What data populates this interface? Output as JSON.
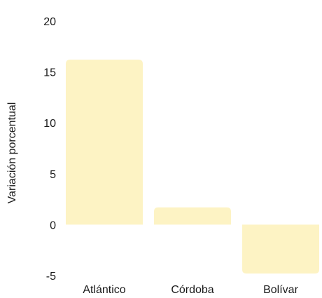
{
  "chart_data": {
    "type": "bar",
    "categories": [
      "Atlántico",
      "Córdoba",
      "Bolívar"
    ],
    "values": [
      16.2,
      1.7,
      -4.8
    ],
    "title": "",
    "xlabel": "",
    "ylabel": "Variación porcentual",
    "ylim": [
      -5,
      20
    ],
    "yticks": [
      "20",
      "15",
      "10",
      "5",
      "0",
      "-5"
    ],
    "bar_color": "#fdf3c4",
    "grid": false
  }
}
